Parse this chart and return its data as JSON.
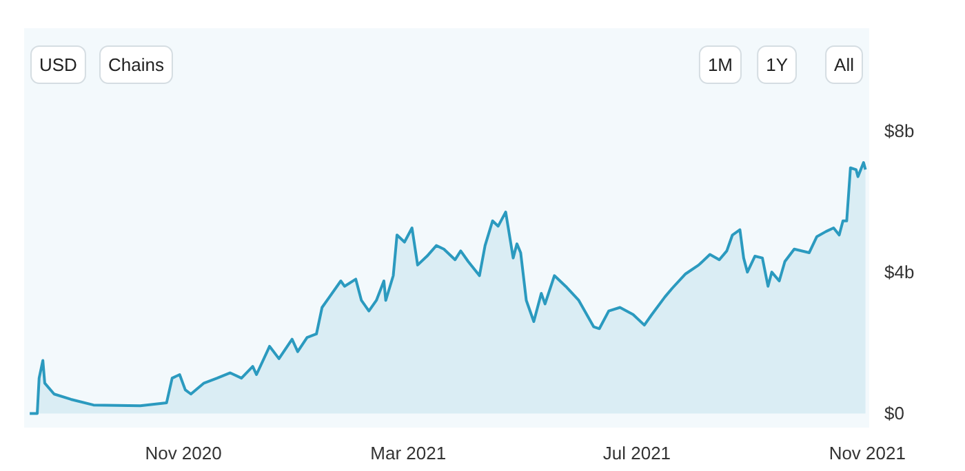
{
  "chart_data": {
    "type": "area",
    "x": [
      "2020-08-11",
      "2020-08-15",
      "2020-08-16",
      "2020-08-18",
      "2020-08-19",
      "2020-08-24",
      "2020-09-02",
      "2020-09-14",
      "2020-10-09",
      "2020-10-23",
      "2020-10-26",
      "2020-10-30",
      "2020-11-02",
      "2020-11-05",
      "2020-11-12",
      "2020-11-19",
      "2020-11-26",
      "2020-12-02",
      "2020-12-08",
      "2020-12-10",
      "2020-12-17",
      "2020-12-22",
      "2020-12-29",
      "2021-01-01",
      "2021-01-06",
      "2021-01-11",
      "2021-01-14",
      "2021-01-18",
      "2021-01-24",
      "2021-01-26",
      "2021-02-01",
      "2021-02-04",
      "2021-02-08",
      "2021-02-12",
      "2021-02-16",
      "2021-02-17",
      "2021-02-21",
      "2021-02-23",
      "2021-02-27",
      "2021-03-03",
      "2021-03-06",
      "2021-03-11",
      "2021-03-16",
      "2021-03-20",
      "2021-03-26",
      "2021-03-29",
      "2021-04-02",
      "2021-04-08",
      "2021-04-11",
      "2021-04-15",
      "2021-04-18",
      "2021-04-22",
      "2021-04-26",
      "2021-04-28",
      "2021-04-30",
      "2021-05-03",
      "2021-05-07",
      "2021-05-11",
      "2021-05-13",
      "2021-05-18",
      "2021-05-24",
      "2021-05-31",
      "2021-06-08",
      "2021-06-11",
      "2021-06-16",
      "2021-06-22",
      "2021-06-29",
      "2021-07-05",
      "2021-07-09",
      "2021-07-16",
      "2021-07-20",
      "2021-07-27",
      "2021-08-03",
      "2021-08-09",
      "2021-08-14",
      "2021-08-18",
      "2021-08-21",
      "2021-08-25",
      "2021-08-27",
      "2021-08-29",
      "2021-09-02",
      "2021-09-06",
      "2021-09-09",
      "2021-09-11",
      "2021-09-15",
      "2021-09-18",
      "2021-09-23",
      "2021-10-01",
      "2021-10-05",
      "2021-10-10",
      "2021-10-14",
      "2021-10-17",
      "2021-10-19",
      "2021-10-21",
      "2021-10-23",
      "2021-10-26",
      "2021-10-27",
      "2021-10-30",
      "2021-10-31"
    ],
    "series": [
      {
        "color": "#2b9abf",
        "values": [
          0,
          0,
          1.0,
          1.5,
          0.86,
          0.55,
          0.4,
          0.24,
          0.22,
          0.3,
          1.0,
          1.1,
          0.67,
          0.55,
          0.86,
          1.0,
          1.15,
          1.0,
          1.33,
          1.1,
          1.9,
          1.55,
          2.1,
          1.75,
          2.15,
          2.25,
          3.0,
          3.3,
          3.75,
          3.6,
          3.8,
          3.2,
          2.9,
          3.2,
          3.75,
          3.2,
          3.9,
          5.05,
          4.85,
          5.25,
          4.2,
          4.45,
          4.75,
          4.65,
          4.35,
          4.6,
          4.3,
          3.9,
          4.75,
          5.45,
          5.3,
          5.7,
          4.4,
          4.8,
          4.55,
          3.2,
          2.6,
          3.4,
          3.1,
          3.9,
          3.6,
          3.2,
          2.45,
          2.4,
          2.9,
          3.0,
          2.8,
          2.5,
          2.8,
          3.3,
          3.55,
          3.95,
          4.2,
          4.5,
          4.35,
          4.6,
          5.05,
          5.2,
          4.4,
          4.0,
          4.45,
          4.4,
          3.6,
          4.0,
          3.75,
          4.3,
          4.65,
          4.55,
          5.0,
          5.15,
          5.25,
          5.05,
          5.45,
          5.45,
          6.95,
          6.9,
          6.7,
          7.1,
          6.9
        ]
      }
    ],
    "xlim": [
      "2020-08-08",
      "2021-11-02"
    ],
    "xticks": [
      {
        "value": "2020-11-01",
        "label": "Nov 2020"
      },
      {
        "value": "2021-03-01",
        "label": "Mar 2021"
      },
      {
        "value": "2021-07-01",
        "label": "Jul 2021"
      },
      {
        "value": "2021-11-01",
        "label": "Nov 2021"
      }
    ],
    "ylim": [
      -0.4,
      10.9
    ],
    "yticks": [
      {
        "value": 0,
        "label": "$0"
      },
      {
        "value": 4,
        "label": "$4b"
      },
      {
        "value": 8,
        "label": "$8b"
      }
    ],
    "grid": false,
    "marker": "none",
    "line_style": "solid",
    "annotations": [
      "USD",
      "Chains",
      "1M",
      "1Y",
      "All"
    ]
  }
}
